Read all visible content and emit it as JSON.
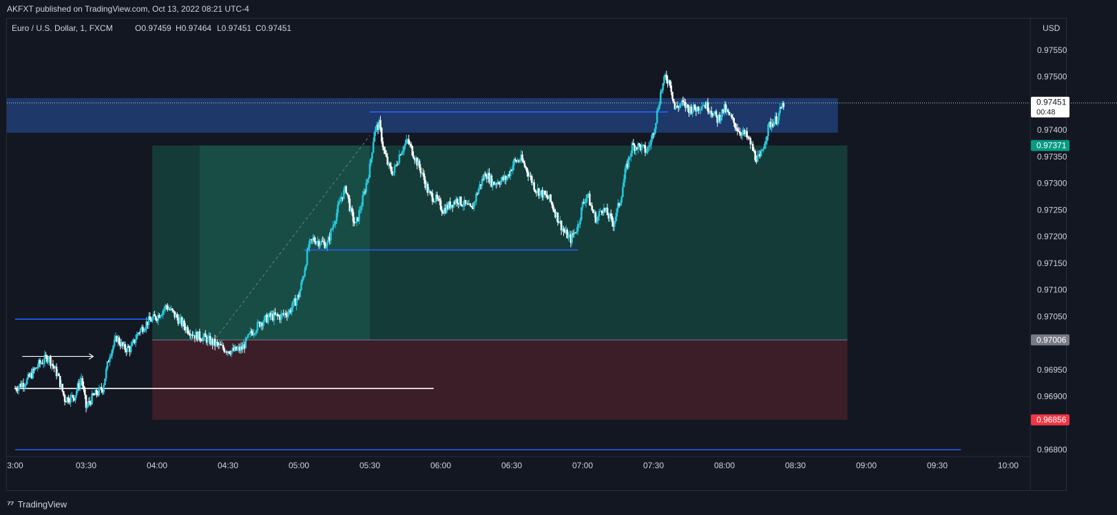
{
  "header": {
    "published_line": "AKFXT published on TradingView.com, Oct 13, 2022 08:21 UTC-4",
    "symbol_line": "Euro / U.S. Dollar, 1, FXCM",
    "ohlc": {
      "O": "O0.97459",
      "H": "H0.97464",
      "L": "L0.97451",
      "C": "C0.97451"
    }
  },
  "footer": {
    "logo_text": "TradingView"
  },
  "chart_data": {
    "type": "candlestick",
    "symbol": "Euro / U.S. Dollar",
    "interval": "1",
    "broker": "FXCM",
    "currency_label": "USD",
    "y_range": [
      0.96775,
      0.9759
    ],
    "x_range_minutes": [
      180,
      600
    ],
    "y_ticks": [
      "0.97550",
      "0.97500",
      "0.97400",
      "0.97350",
      "0.97300",
      "0.97250",
      "0.97200",
      "0.97150",
      "0.97100",
      "0.97050",
      "0.96950",
      "0.96900",
      "0.96800"
    ],
    "x_ticks": [
      {
        "label": "3:00",
        "min": 180
      },
      {
        "label": "03:30",
        "min": 210
      },
      {
        "label": "04:00",
        "min": 240
      },
      {
        "label": "04:30",
        "min": 270
      },
      {
        "label": "05:00",
        "min": 300
      },
      {
        "label": "05:30",
        "min": 330
      },
      {
        "label": "06:00",
        "min": 360
      },
      {
        "label": "06:30",
        "min": 390
      },
      {
        "label": "07:00",
        "min": 420
      },
      {
        "label": "07:30",
        "min": 450
      },
      {
        "label": "08:00",
        "min": 480
      },
      {
        "label": "08:30",
        "min": 510
      },
      {
        "label": "09:00",
        "min": 540
      },
      {
        "label": "09:30",
        "min": 570
      },
      {
        "label": "10:00",
        "min": 600
      }
    ],
    "price_badges": [
      {
        "label": "0.97451",
        "sub": "00:48",
        "price": 0.97451,
        "bg": "#ffffff",
        "fg": "#131722"
      },
      {
        "label": "0.97371",
        "price": 0.97371,
        "bg": "#089981",
        "fg": "#ffffff"
      },
      {
        "label": "0.97006",
        "price": 0.97006,
        "bg": "#787b86",
        "fg": "#ffffff"
      },
      {
        "label": "0.96856",
        "price": 0.96856,
        "bg": "#f23645",
        "fg": "#ffffff"
      }
    ],
    "zones": {
      "supply_zone": {
        "price_top": 0.9746,
        "price_bottom": 0.97395,
        "x_start_min": 180,
        "x_end_min": 528,
        "color": "#1e3a6e"
      },
      "long_position": {
        "entry": 0.97006,
        "target": 0.97371,
        "stop": 0.96856,
        "x_start_min": 238,
        "x_end_min": 532,
        "profit_color": "#15453f",
        "loss_color": "#3e1f29",
        "highlight_start_min": 258,
        "highlight_end_min": 330
      }
    },
    "lines": [
      {
        "name": "level-0.97434",
        "price": 0.97434,
        "x_start_min": 330,
        "x_end_min": 456,
        "color": "#2962ff"
      },
      {
        "name": "level-0.97175",
        "price": 0.97175,
        "x_start_min": 302,
        "x_end_min": 418,
        "color": "#2962ff"
      },
      {
        "name": "level-0.97045",
        "price": 0.97045,
        "x_start_min": 180,
        "x_end_min": 240,
        "color": "#2962ff"
      },
      {
        "name": "level-0.96915",
        "price": 0.96915,
        "x_start_min": 180,
        "x_end_min": 357,
        "color": "#ffffff"
      },
      {
        "name": "level-0.96800",
        "price": 0.968,
        "x_start_min": 180,
        "x_end_min": 580,
        "color": "#2962ff"
      }
    ],
    "arrow": {
      "price": 0.96975,
      "x_start_min": 183,
      "x_end_min": 213,
      "color": "#ffffff"
    },
    "dashed_trend": {
      "from": {
        "min": 265,
        "price": 0.9701
      },
      "to": {
        "min": 330,
        "price": 0.9739
      }
    },
    "last_price_line": 0.97451,
    "price_path": [
      [
        180,
        0.96915
      ],
      [
        185,
        0.9693
      ],
      [
        190,
        0.9696
      ],
      [
        194,
        0.96975
      ],
      [
        198,
        0.9694
      ],
      [
        201,
        0.96895
      ],
      [
        205,
        0.969
      ],
      [
        208,
        0.96935
      ],
      [
        210,
        0.9688
      ],
      [
        213,
        0.969
      ],
      [
        217,
        0.96915
      ],
      [
        220,
        0.9698
      ],
      [
        223,
        0.9701
      ],
      [
        226,
        0.9699
      ],
      [
        229,
        0.9699
      ],
      [
        232,
        0.9702
      ],
      [
        236,
        0.9704
      ],
      [
        240,
        0.9705
      ],
      [
        244,
        0.9707
      ],
      [
        248,
        0.9705
      ],
      [
        252,
        0.9703
      ],
      [
        256,
        0.97015
      ],
      [
        260,
        0.9701
      ],
      [
        264,
        0.97
      ],
      [
        268,
        0.9699
      ],
      [
        272,
        0.96985
      ],
      [
        276,
        0.9699
      ],
      [
        280,
        0.9702
      ],
      [
        284,
        0.9704
      ],
      [
        288,
        0.9705
      ],
      [
        292,
        0.9705
      ],
      [
        296,
        0.9706
      ],
      [
        300,
        0.9709
      ],
      [
        302,
        0.9713
      ],
      [
        304,
        0.9718
      ],
      [
        306,
        0.97195
      ],
      [
        309,
        0.9719
      ],
      [
        312,
        0.97185
      ],
      [
        315,
        0.9723
      ],
      [
        318,
        0.97275
      ],
      [
        320,
        0.9729
      ],
      [
        322,
        0.97245
      ],
      [
        324,
        0.9722
      ],
      [
        327,
        0.9727
      ],
      [
        330,
        0.9733
      ],
      [
        332,
        0.974
      ],
      [
        334,
        0.9741
      ],
      [
        336,
        0.9736
      ],
      [
        338,
        0.9733
      ],
      [
        340,
        0.9732
      ],
      [
        343,
        0.9736
      ],
      [
        346,
        0.9738
      ],
      [
        349,
        0.9735
      ],
      [
        352,
        0.9732
      ],
      [
        355,
        0.9728
      ],
      [
        358,
        0.9727
      ],
      [
        361,
        0.9725
      ],
      [
        364,
        0.9726
      ],
      [
        367,
        0.9727
      ],
      [
        370,
        0.9726
      ],
      [
        373,
        0.9725
      ],
      [
        376,
        0.9729
      ],
      [
        379,
        0.9732
      ],
      [
        382,
        0.973
      ],
      [
        385,
        0.97305
      ],
      [
        388,
        0.9731
      ],
      [
        391,
        0.9734
      ],
      [
        394,
        0.97345
      ],
      [
        397,
        0.9732
      ],
      [
        400,
        0.9729
      ],
      [
        403,
        0.9728
      ],
      [
        406,
        0.9727
      ],
      [
        409,
        0.9724
      ],
      [
        412,
        0.9721
      ],
      [
        415,
        0.97195
      ],
      [
        418,
        0.9722
      ],
      [
        420,
        0.9726
      ],
      [
        422,
        0.9728
      ],
      [
        424,
        0.9725
      ],
      [
        426,
        0.9723
      ],
      [
        428,
        0.97255
      ],
      [
        430,
        0.97245
      ],
      [
        433,
        0.97225
      ],
      [
        436,
        0.9727
      ],
      [
        438,
        0.9732
      ],
      [
        441,
        0.9737
      ],
      [
        444,
        0.9737
      ],
      [
        447,
        0.9736
      ],
      [
        449,
        0.9738
      ],
      [
        451,
        0.9742
      ],
      [
        453,
        0.9747
      ],
      [
        455,
        0.975
      ],
      [
        457,
        0.9749
      ],
      [
        459,
        0.9744
      ],
      [
        462,
        0.9745
      ],
      [
        465,
        0.9744
      ],
      [
        468,
        0.9744
      ],
      [
        471,
        0.9745
      ],
      [
        474,
        0.9744
      ],
      [
        477,
        0.9742
      ],
      [
        480,
        0.9744
      ],
      [
        483,
        0.9742
      ],
      [
        486,
        0.974
      ],
      [
        489,
        0.9739
      ],
      [
        491,
        0.97375
      ],
      [
        493,
        0.9735
      ],
      [
        495,
        0.97345
      ],
      [
        497,
        0.9738
      ],
      [
        499,
        0.9741
      ],
      [
        502,
        0.9742
      ],
      [
        505,
        0.9745
      ]
    ]
  }
}
